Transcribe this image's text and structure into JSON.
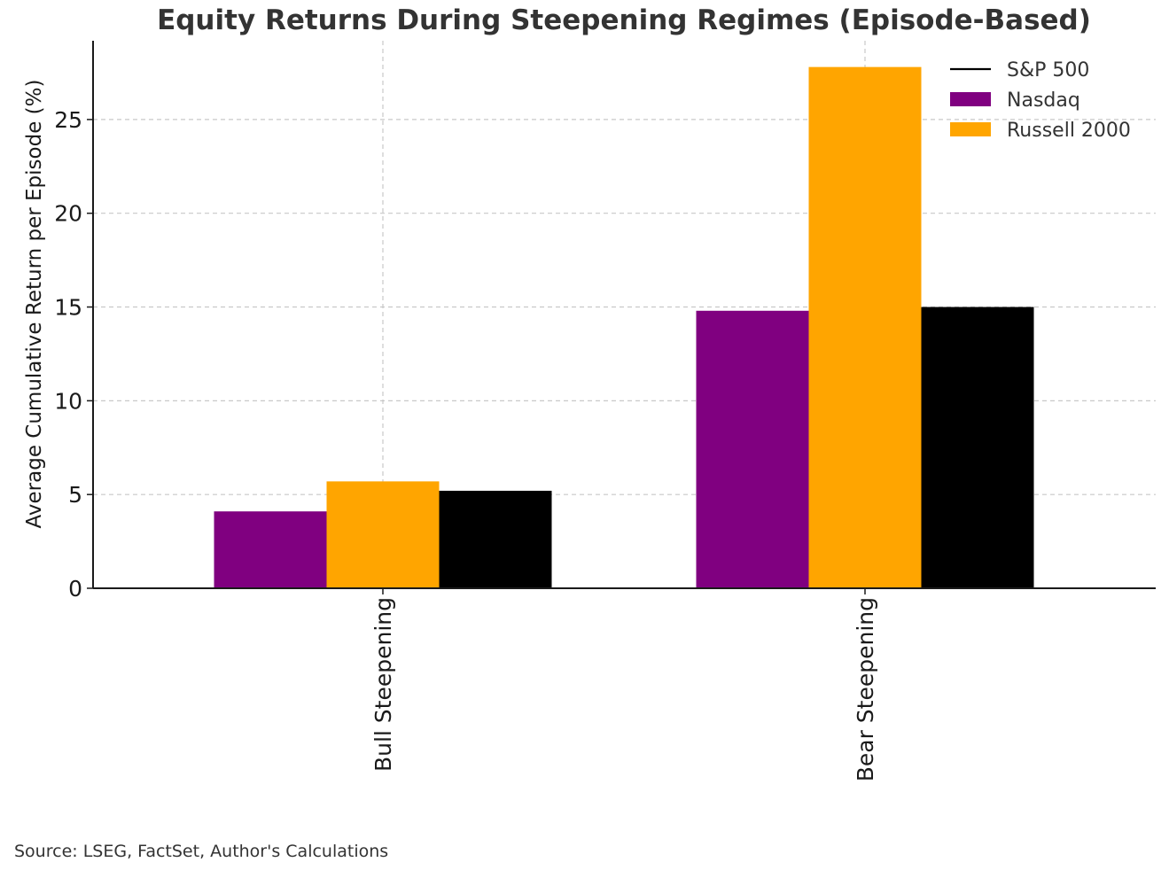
{
  "chart_data": {
    "type": "bar",
    "title": "Equity Returns During Steepening Regimes (Episode-Based)",
    "xlabel": "",
    "ylabel": "Average Cumulative Return per Episode (%)",
    "categories": [
      "Bull Steepening",
      "Bear Steepening"
    ],
    "series": [
      {
        "name": "Nasdaq",
        "color": "#800080",
        "values": [
          4.1,
          14.8
        ]
      },
      {
        "name": "Russell 2000",
        "color": "#FFA500",
        "values": [
          5.7,
          27.8
        ]
      },
      {
        "name": "S&P 500",
        "color": "#000000",
        "values": [
          5.2,
          15.0
        ]
      }
    ],
    "legend_order": [
      "S&P 500",
      "Nasdaq",
      "Russell 2000"
    ],
    "legend_markers": {
      "S&P 500": "line",
      "Nasdaq": "patch",
      "Russell 2000": "patch"
    },
    "legend_position": "top-right",
    "ylim": [
      0,
      29.2
    ],
    "yticks": [
      0,
      5,
      10,
      15,
      20,
      25
    ],
    "ytick_labels": [
      "0",
      "5",
      "10",
      "15",
      "20",
      "25"
    ],
    "grid": true,
    "source": "Source: LSEG, FactSet, Author's Calculations"
  }
}
